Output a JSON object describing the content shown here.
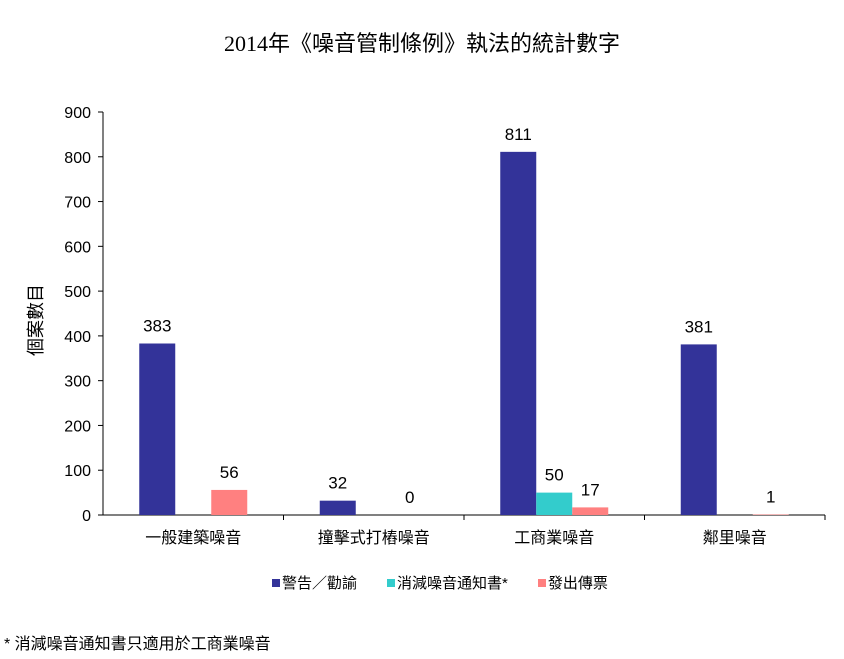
{
  "chart_data": {
    "type": "bar",
    "title": "2014年《噪音管制條例》執法的統計數字",
    "xlabel": "",
    "ylabel": "個案數目",
    "ylim": [
      0,
      900
    ],
    "yticks": [
      0,
      100,
      200,
      300,
      400,
      500,
      600,
      700,
      800,
      900
    ],
    "categories": [
      "一般建築噪音",
      "撞擊式打樁噪音",
      "工商業噪音",
      "鄰里噪音"
    ],
    "series": [
      {
        "name": "警告／勸諭",
        "color": "#333399",
        "values": [
          383,
          32,
          811,
          381
        ]
      },
      {
        "name": "消減噪音通知書*",
        "color": "#33CCCC",
        "values": [
          null,
          null,
          50,
          null
        ]
      },
      {
        "name": "發出傳票",
        "color": "#FF8080",
        "values": [
          56,
          0,
          17,
          1
        ]
      }
    ],
    "grid": false,
    "legend_position": "bottom"
  },
  "footnote": "* 消減噪音通知書只適用於工商業噪音"
}
